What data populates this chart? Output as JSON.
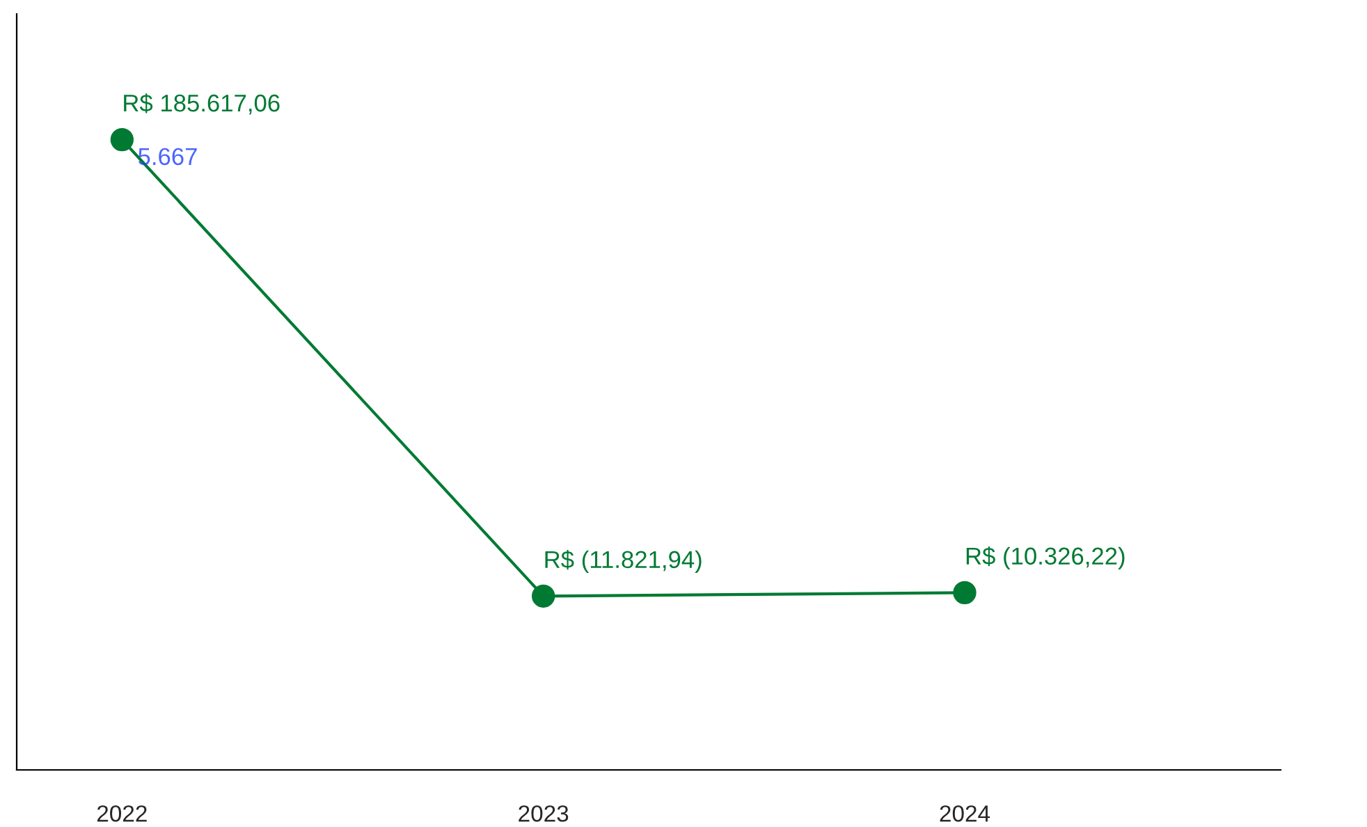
{
  "chart_data": {
    "type": "line",
    "categories": [
      "2022",
      "2023",
      "2024"
    ],
    "series": [
      {
        "color": "#007a33",
        "values": [
          185617.06,
          -11821.94,
          -10326.22
        ],
        "value_labels": [
          "R$ 185.617,06",
          "R$ (11.821,94)",
          "R$ (10.326,22)"
        ]
      }
    ],
    "annotations": [
      {
        "text": "5.667",
        "x": "2022",
        "y": 185617.06
      }
    ],
    "ylim": [
      -87000,
      240000
    ],
    "tick_labels": "x",
    "marker": "circle",
    "line_style": "solid",
    "grid": false,
    "legend": false
  }
}
